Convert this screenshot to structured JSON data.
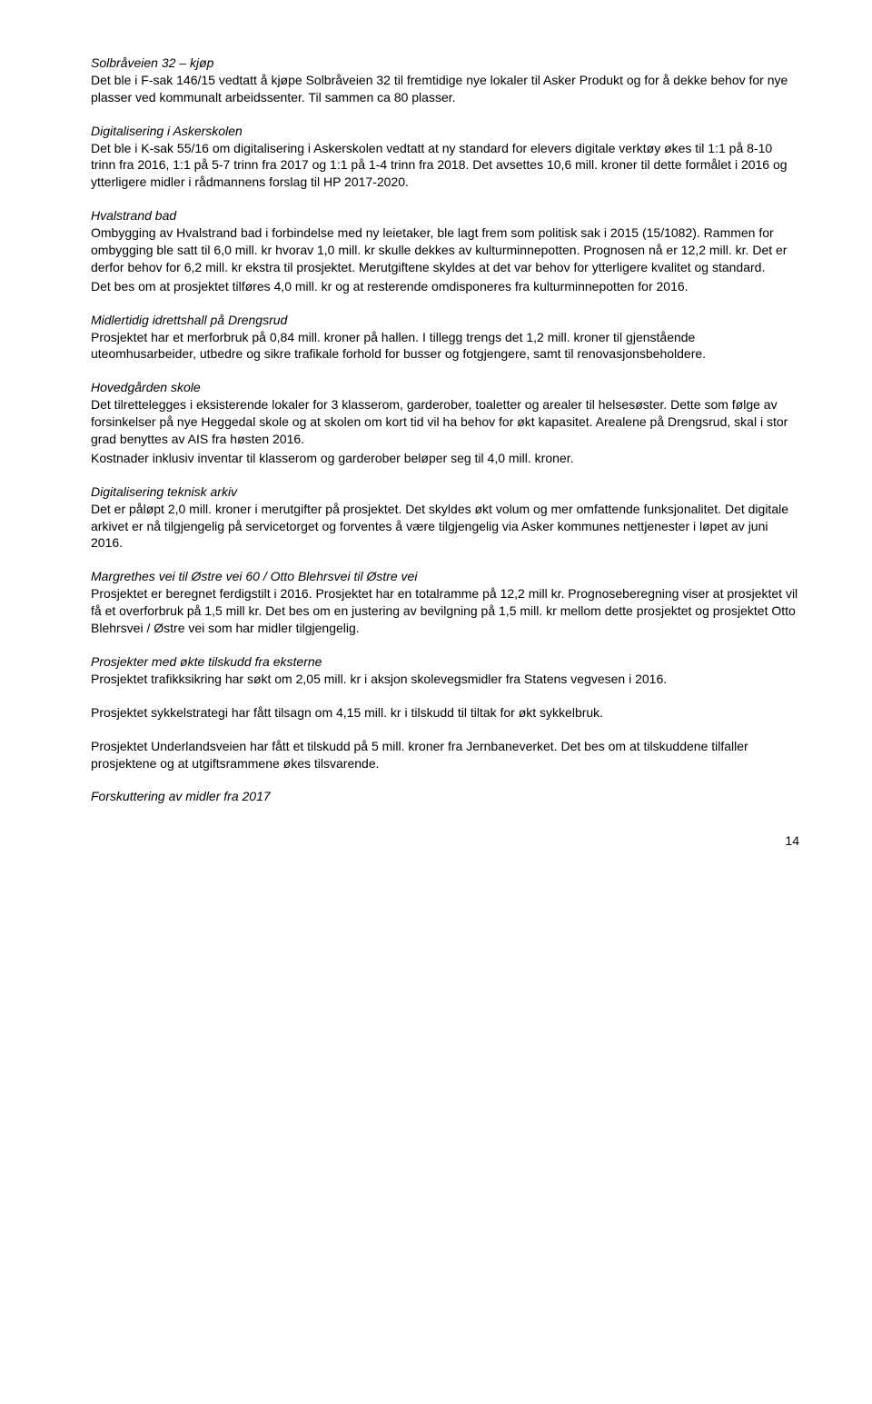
{
  "sections": [
    {
      "heading": "Solbråveien 32 – kjøp",
      "body": "Det ble i F-sak 146/15 vedtatt å kjøpe Solbråveien 32 til fremtidige nye lokaler til Asker Produkt og for å dekke behov for nye plasser ved kommunalt arbeidssenter. Til sammen ca 80 plasser."
    },
    {
      "heading": "Digitalisering i Askerskolen",
      "body": "Det ble i K-sak 55/16 om digitalisering i Askerskolen vedtatt at ny standard for elevers digitale verktøy økes til 1:1 på 8-10 trinn fra 2016, 1:1 på 5-7 trinn fra 2017 og 1:1 på 1-4 trinn fra 2018. Det avsettes 10,6 mill. kroner til dette formålet i 2016 og ytterligere midler i rådmannens forslag til HP 2017-2020."
    },
    {
      "heading": "Hvalstrand bad",
      "body": "Ombygging av Hvalstrand bad i forbindelse med ny leietaker, ble lagt frem som politisk sak i 2015 (15/1082). Rammen for ombygging ble satt til 6,0 mill. kr hvorav 1,0 mill. kr skulle dekkes av kulturminnepotten. Prognosen nå er 12,2 mill. kr. Det er derfor behov for 6,2 mill. kr ekstra til prosjektet. Merutgiftene skyldes at det var behov for ytterligere kvalitet og standard.",
      "body2": "Det bes om at prosjektet tilføres 4,0 mill. kr og at resterende omdisponeres fra kulturminnepotten for 2016."
    },
    {
      "heading": "Midlertidig idrettshall på Drengsrud",
      "body": "Prosjektet har et merforbruk på 0,84 mill. kroner på hallen. I tillegg trengs det 1,2 mill. kroner til gjenstående uteomhusarbeider, utbedre og sikre trafikale forhold for busser og fotgjengere, samt til renovasjonsbeholdere."
    },
    {
      "heading": "Hovedgården skole",
      "body": "Det tilrettelegges i eksisterende lokaler for 3 klasserom, garderober, toaletter og arealer til helsesøster. Dette som følge av forsinkelser på nye Heggedal skole og at skolen om kort tid vil ha behov for økt kapasitet. Arealene på Drengsrud, skal i stor grad benyttes av AIS fra høsten 2016.",
      "body2": "Kostnader inklusiv inventar til klasserom og garderober beløper seg til 4,0 mill. kroner."
    },
    {
      "heading": "Digitalisering teknisk arkiv",
      "body": "Det er påløpt 2,0 mill. kroner i merutgifter på prosjektet. Det skyldes økt volum og mer omfattende funksjonalitet. Det digitale arkivet er nå tilgjengelig på servicetorget og forventes å være tilgjengelig via Asker kommunes nettjenester i løpet av juni 2016."
    },
    {
      "heading": "Margrethes vei til Østre vei 60 / Otto Blehrsvei til Østre vei",
      "body": "Prosjektet er beregnet ferdigstilt i 2016. Prosjektet har en totalramme på 12,2 mill kr. Prognoseberegning viser at prosjektet vil få et overforbruk på 1,5 mill kr. Det bes om en justering av bevilgning på 1,5 mill. kr mellom dette prosjektet og prosjektet Otto Blehrsvei / Østre vei som har midler tilgjengelig."
    },
    {
      "heading": "Prosjekter med økte tilskudd fra eksterne",
      "body": "Prosjektet trafikksikring har søkt om 2,05 mill. kr i aksjon skolevegsmidler fra Statens vegvesen i 2016."
    },
    {
      "body": "Prosjektet sykkelstrategi har fått tilsagn om 4,15 mill. kr i tilskudd til tiltak for økt sykkelbruk."
    },
    {
      "body": "Prosjektet Underlandsveien har fått et tilskudd på 5 mill. kroner fra Jernbaneverket. Det bes om at tilskuddene tilfaller prosjektene og at utgiftsrammene økes tilsvarende."
    },
    {
      "heading": "Forskuttering av midler fra 2017"
    }
  ],
  "pageNumber": "14"
}
